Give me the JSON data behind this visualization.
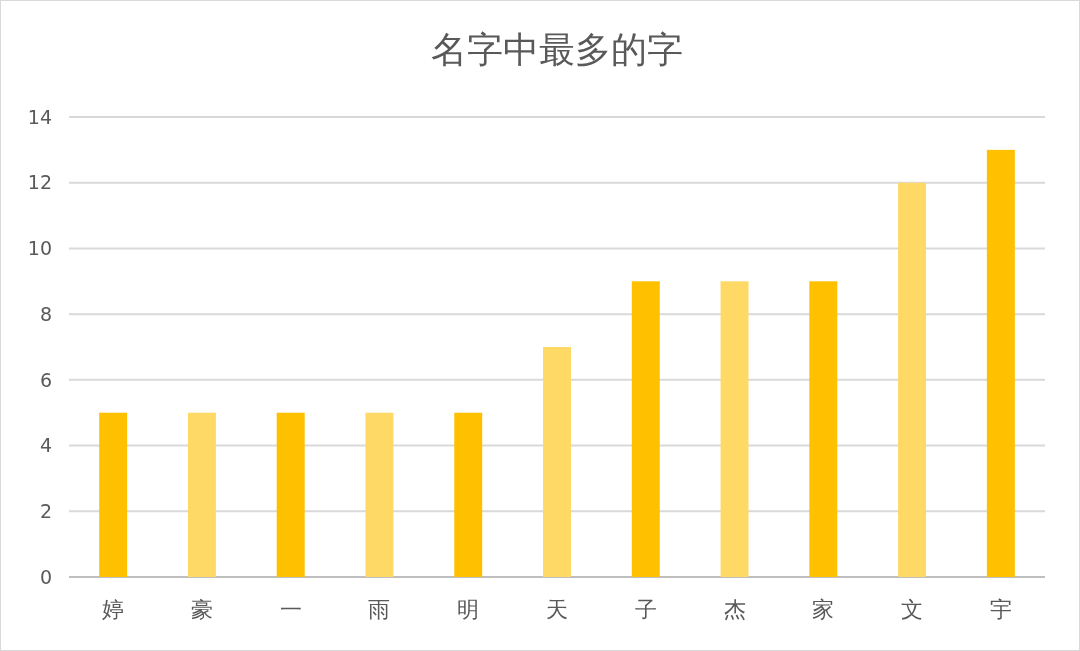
{
  "chart_data": {
    "type": "bar",
    "title": "名字中最多的字",
    "categories": [
      "婷",
      "豪",
      "一",
      "雨",
      "明",
      "天",
      "子",
      "杰",
      "家",
      "文",
      "宇"
    ],
    "values": [
      5,
      5,
      5,
      5,
      5,
      7,
      9,
      9,
      9,
      12,
      13
    ],
    "colors": [
      "#ffc000",
      "#ffd966",
      "#ffc000",
      "#ffd966",
      "#ffc000",
      "#ffd966",
      "#ffc000",
      "#ffd966",
      "#ffc000",
      "#ffd966",
      "#ffc000"
    ],
    "ylim": [
      0,
      14
    ],
    "yticks": [
      0,
      2,
      4,
      6,
      8,
      10,
      12,
      14
    ],
    "grid": "y"
  }
}
